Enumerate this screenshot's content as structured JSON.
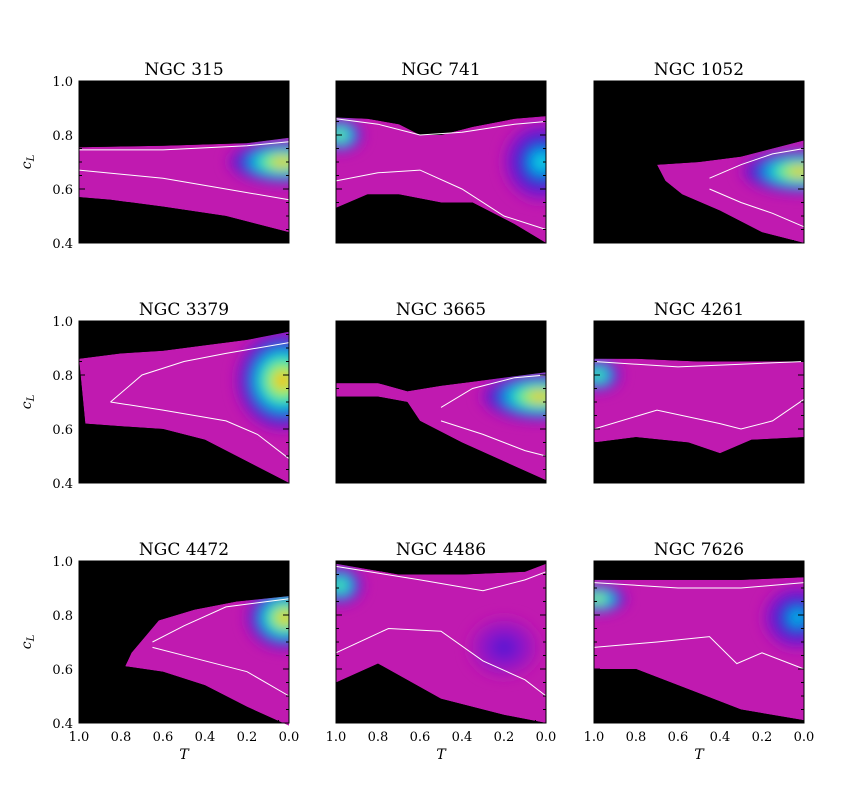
{
  "chart_data": {
    "type": "heatmap",
    "layout": "3x3 grid of density maps",
    "xlabel": "T",
    "ylabel": "c_L",
    "xlim": [
      1.0,
      0.0
    ],
    "ylim": [
      0.4,
      1.0
    ],
    "x_ticks": [
      "1.0",
      "0.8",
      "0.6",
      "0.4",
      "0.2",
      "0.0"
    ],
    "y_ticks": [
      "1.0",
      "0.8",
      "0.6",
      "0.4"
    ],
    "background_color": "#000000",
    "colormap": [
      "#c01ab0",
      "#7a10d0",
      "#1030d0",
      "#00c8f0",
      "#30f0a0",
      "#f0f020",
      "#f08010"
    ],
    "contour_color": "#ffffff",
    "grid": false,
    "panels": [
      {
        "name": "NGC 315",
        "region": [
          [
            1.0,
            0.755
          ],
          [
            0.6,
            0.76
          ],
          [
            0.2,
            0.77
          ],
          [
            0.0,
            0.79
          ],
          [
            0.0,
            0.44
          ],
          [
            0.3,
            0.5
          ],
          [
            0.6,
            0.535
          ],
          [
            0.85,
            0.56
          ],
          [
            1.0,
            0.57
          ]
        ],
        "peaks": [
          {
            "T": 0.03,
            "c_L": 0.7,
            "intensity": 1.0,
            "rT": 0.28,
            "rC": 0.09
          }
        ],
        "contours": [
          [
            [
              1.0,
              0.745
            ],
            [
              0.6,
              0.745
            ],
            [
              0.2,
              0.76
            ],
            [
              0.0,
              0.775
            ]
          ],
          [
            [
              1.0,
              0.67
            ],
            [
              0.6,
              0.64
            ],
            [
              0.3,
              0.6
            ],
            [
              0.0,
              0.56
            ]
          ]
        ]
      },
      {
        "name": "NGC 741",
        "region": [
          [
            1.0,
            0.865
          ],
          [
            0.85,
            0.86
          ],
          [
            0.7,
            0.84
          ],
          [
            0.6,
            0.8
          ],
          [
            0.5,
            0.8
          ],
          [
            0.35,
            0.83
          ],
          [
            0.15,
            0.86
          ],
          [
            0.0,
            0.87
          ],
          [
            0.0,
            0.4
          ],
          [
            0.15,
            0.47
          ],
          [
            0.35,
            0.55
          ],
          [
            0.5,
            0.55
          ],
          [
            0.7,
            0.58
          ],
          [
            0.85,
            0.58
          ],
          [
            1.0,
            0.53
          ]
        ],
        "peaks": [
          {
            "T": 0.98,
            "c_L": 0.8,
            "intensity": 0.85,
            "rT": 0.12,
            "rC": 0.07
          },
          {
            "T": 0.02,
            "c_L": 0.7,
            "intensity": 0.6,
            "rT": 0.2,
            "rC": 0.16
          }
        ],
        "contours": [
          [
            [
              1.0,
              0.86
            ],
            [
              0.8,
              0.84
            ],
            [
              0.6,
              0.8
            ],
            [
              0.4,
              0.81
            ],
            [
              0.15,
              0.84
            ],
            [
              0.0,
              0.85
            ]
          ],
          [
            [
              1.0,
              0.63
            ],
            [
              0.8,
              0.66
            ],
            [
              0.6,
              0.67
            ],
            [
              0.4,
              0.6
            ],
            [
              0.2,
              0.5
            ],
            [
              0.0,
              0.45
            ]
          ]
        ]
      },
      {
        "name": "NGC 1052",
        "region": [
          [
            0.7,
            0.69
          ],
          [
            0.5,
            0.7
          ],
          [
            0.3,
            0.72
          ],
          [
            0.15,
            0.75
          ],
          [
            0.0,
            0.78
          ],
          [
            0.0,
            0.4
          ],
          [
            0.2,
            0.44
          ],
          [
            0.4,
            0.52
          ],
          [
            0.58,
            0.58
          ],
          [
            0.66,
            0.63
          ]
        ],
        "peaks": [
          {
            "T": 0.02,
            "c_L": 0.665,
            "intensity": 1.0,
            "rT": 0.3,
            "rC": 0.09
          }
        ],
        "contours": [
          [
            [
              0.45,
              0.64
            ],
            [
              0.3,
              0.69
            ],
            [
              0.15,
              0.73
            ],
            [
              0.0,
              0.75
            ]
          ],
          [
            [
              0.45,
              0.6
            ],
            [
              0.3,
              0.55
            ],
            [
              0.15,
              0.51
            ],
            [
              0.0,
              0.46
            ]
          ]
        ]
      },
      {
        "name": "NGC 3379",
        "region": [
          [
            1.0,
            0.86
          ],
          [
            0.8,
            0.88
          ],
          [
            0.6,
            0.89
          ],
          [
            0.4,
            0.91
          ],
          [
            0.2,
            0.93
          ],
          [
            0.0,
            0.96
          ],
          [
            0.0,
            0.4
          ],
          [
            0.2,
            0.48
          ],
          [
            0.4,
            0.56
          ],
          [
            0.6,
            0.6
          ],
          [
            0.8,
            0.61
          ],
          [
            0.97,
            0.62
          ]
        ],
        "peaks": [
          {
            "T": 0.03,
            "c_L": 0.78,
            "intensity": 1.0,
            "rT": 0.24,
            "rC": 0.2
          }
        ],
        "contours": [
          [
            [
              0.85,
              0.7
            ],
            [
              0.7,
              0.8
            ],
            [
              0.5,
              0.85
            ],
            [
              0.3,
              0.88
            ],
            [
              0.0,
              0.92
            ]
          ],
          [
            [
              0.85,
              0.7
            ],
            [
              0.6,
              0.67
            ],
            [
              0.3,
              0.63
            ],
            [
              0.15,
              0.58
            ],
            [
              0.0,
              0.49
            ]
          ]
        ]
      },
      {
        "name": "NGC 3665",
        "region": [
          [
            1.0,
            0.77
          ],
          [
            0.8,
            0.77
          ],
          [
            0.66,
            0.74
          ],
          [
            0.5,
            0.76
          ],
          [
            0.3,
            0.78
          ],
          [
            0.0,
            0.81
          ],
          [
            0.0,
            0.41
          ],
          [
            0.2,
            0.48
          ],
          [
            0.4,
            0.55
          ],
          [
            0.6,
            0.63
          ],
          [
            0.66,
            0.7
          ],
          [
            0.8,
            0.72
          ],
          [
            1.0,
            0.72
          ]
        ],
        "peaks": [
          {
            "T": 0.03,
            "c_L": 0.72,
            "intensity": 1.0,
            "rT": 0.3,
            "rC": 0.1
          }
        ],
        "contours": [
          [
            [
              0.5,
              0.68
            ],
            [
              0.35,
              0.75
            ],
            [
              0.15,
              0.79
            ],
            [
              0.0,
              0.8
            ]
          ],
          [
            [
              0.5,
              0.63
            ],
            [
              0.3,
              0.58
            ],
            [
              0.1,
              0.52
            ],
            [
              0.0,
              0.5
            ]
          ]
        ]
      },
      {
        "name": "NGC 4261",
        "region": [
          [
            1.0,
            0.86
          ],
          [
            0.8,
            0.86
          ],
          [
            0.5,
            0.85
          ],
          [
            0.2,
            0.85
          ],
          [
            0.0,
            0.85
          ],
          [
            0.0,
            0.57
          ],
          [
            0.25,
            0.56
          ],
          [
            0.4,
            0.51
          ],
          [
            0.55,
            0.55
          ],
          [
            0.8,
            0.57
          ],
          [
            1.0,
            0.55
          ]
        ],
        "peaks": [
          {
            "T": 0.98,
            "c_L": 0.8,
            "intensity": 0.8,
            "rT": 0.12,
            "rC": 0.07
          }
        ],
        "contours": [
          [
            [
              1.0,
              0.85
            ],
            [
              0.6,
              0.83
            ],
            [
              0.3,
              0.84
            ],
            [
              0.0,
              0.85
            ]
          ],
          [
            [
              1.0,
              0.6
            ],
            [
              0.7,
              0.67
            ],
            [
              0.4,
              0.62
            ],
            [
              0.3,
              0.6
            ],
            [
              0.15,
              0.63
            ],
            [
              0.0,
              0.71
            ]
          ]
        ]
      },
      {
        "name": "NGC 4472",
        "region": [
          [
            0.75,
            0.66
          ],
          [
            0.62,
            0.78
          ],
          [
            0.45,
            0.82
          ],
          [
            0.25,
            0.85
          ],
          [
            0.0,
            0.87
          ],
          [
            0.0,
            0.39
          ],
          [
            0.2,
            0.46
          ],
          [
            0.4,
            0.54
          ],
          [
            0.6,
            0.59
          ],
          [
            0.78,
            0.61
          ]
        ],
        "peaks": [
          {
            "T": 0.02,
            "c_L": 0.79,
            "intensity": 1.0,
            "rT": 0.2,
            "rC": 0.13
          }
        ],
        "contours": [
          [
            [
              0.65,
              0.7
            ],
            [
              0.5,
              0.76
            ],
            [
              0.3,
              0.83
            ],
            [
              0.0,
              0.86
            ]
          ],
          [
            [
              0.65,
              0.68
            ],
            [
              0.45,
              0.64
            ],
            [
              0.2,
              0.59
            ],
            [
              0.0,
              0.5
            ]
          ]
        ]
      },
      {
        "name": "NGC 4486",
        "region": [
          [
            1.0,
            0.99
          ],
          [
            0.7,
            0.95
          ],
          [
            0.4,
            0.95
          ],
          [
            0.1,
            0.96
          ],
          [
            0.0,
            0.99
          ],
          [
            0.0,
            0.4
          ],
          [
            0.2,
            0.43
          ],
          [
            0.5,
            0.49
          ],
          [
            0.8,
            0.62
          ],
          [
            1.0,
            0.55
          ]
        ],
        "peaks": [
          {
            "T": 0.98,
            "c_L": 0.91,
            "intensity": 0.8,
            "rT": 0.12,
            "rC": 0.08
          },
          {
            "T": 0.2,
            "c_L": 0.68,
            "intensity": 0.25,
            "rT": 0.18,
            "rC": 0.12
          }
        ],
        "contours": [
          [
            [
              1.0,
              0.98
            ],
            [
              0.6,
              0.93
            ],
            [
              0.3,
              0.89
            ],
            [
              0.1,
              0.93
            ],
            [
              0.0,
              0.96
            ]
          ],
          [
            [
              1.0,
              0.66
            ],
            [
              0.75,
              0.75
            ],
            [
              0.5,
              0.74
            ],
            [
              0.3,
              0.63
            ],
            [
              0.1,
              0.56
            ],
            [
              0.0,
              0.5
            ]
          ]
        ]
      },
      {
        "name": "NGC 7626",
        "region": [
          [
            1.0,
            0.93
          ],
          [
            0.6,
            0.93
          ],
          [
            0.3,
            0.93
          ],
          [
            0.0,
            0.94
          ],
          [
            0.0,
            0.41
          ],
          [
            0.3,
            0.45
          ],
          [
            0.5,
            0.51
          ],
          [
            0.8,
            0.6
          ],
          [
            1.0,
            0.6
          ]
        ],
        "peaks": [
          {
            "T": 0.98,
            "c_L": 0.86,
            "intensity": 0.9,
            "rT": 0.15,
            "rC": 0.06
          },
          {
            "T": 0.03,
            "c_L": 0.79,
            "intensity": 0.55,
            "rT": 0.18,
            "rC": 0.13
          }
        ],
        "contours": [
          [
            [
              1.0,
              0.92
            ],
            [
              0.6,
              0.9
            ],
            [
              0.3,
              0.9
            ],
            [
              0.0,
              0.92
            ]
          ],
          [
            [
              1.0,
              0.68
            ],
            [
              0.7,
              0.7
            ],
            [
              0.45,
              0.72
            ],
            [
              0.32,
              0.62
            ],
            [
              0.2,
              0.66
            ],
            [
              0.0,
              0.6
            ]
          ]
        ]
      }
    ]
  }
}
